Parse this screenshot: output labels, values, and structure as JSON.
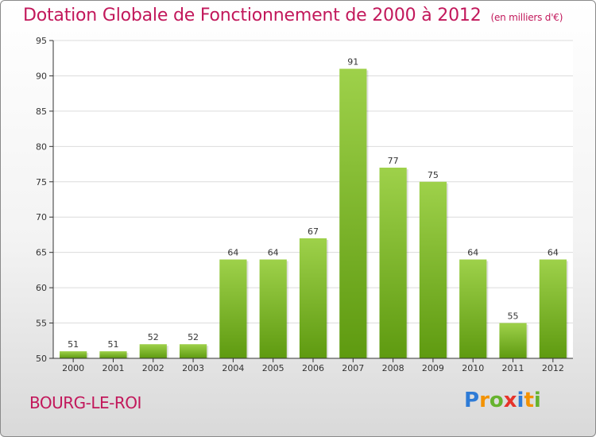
{
  "chart_data": {
    "type": "bar",
    "title": "Dotation Globale de Fonctionnement de 2000 à 2012",
    "subtitle": "(en milliers d'€)",
    "categories": [
      "2000",
      "2001",
      "2002",
      "2003",
      "2004",
      "2005",
      "2006",
      "2007",
      "2008",
      "2009",
      "2010",
      "2011",
      "2012"
    ],
    "values": [
      51,
      51,
      52,
      52,
      64,
      64,
      67,
      91,
      77,
      75,
      64,
      55,
      64
    ],
    "ylim": [
      50,
      95
    ],
    "yticks": [
      50,
      55,
      60,
      65,
      70,
      75,
      80,
      85,
      90,
      95
    ],
    "xlabel": "",
    "ylabel": "",
    "grid": true,
    "bar_color_top": "#9ed14a",
    "bar_color_bottom": "#5e9a10"
  },
  "footer": {
    "place_name": "BOURG-LE-ROI",
    "logo_letters": [
      "P",
      "r",
      "o",
      "x",
      "i",
      "t",
      "i"
    ],
    "logo_colors": [
      "#2e7bd6",
      "#f39200",
      "#66b32e",
      "#e6332a",
      "#2e7bd6",
      "#f39200",
      "#66b32e"
    ]
  },
  "colors": {
    "accent": "#c2185b",
    "axis": "#333333",
    "grid": "#dcdcdc"
  }
}
